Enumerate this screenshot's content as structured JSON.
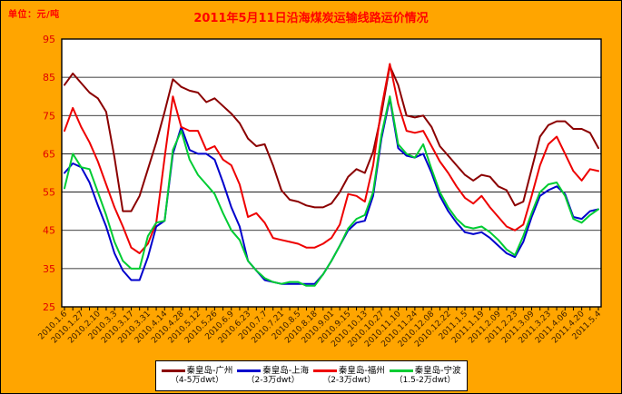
{
  "header": {
    "unit_label": "单位：元/吨",
    "title": "2011年5月11日沿海煤炭运输线路运价情况"
  },
  "colors": {
    "background": "#FFA500",
    "plot_background": "#FFFFFF",
    "plot_border": "#000000",
    "gridline": "#000000",
    "title_color": "#FF0000",
    "y_label_color": "#E00000",
    "x_label_color": "#3B1D00"
  },
  "chart_data": {
    "type": "line",
    "title": "2011年5月11日沿海煤炭运输线路运价情况",
    "ylabel": "元/吨",
    "ylim": [
      25,
      95
    ],
    "y_ticks": [
      95,
      85,
      75,
      65,
      55,
      45,
      35,
      25
    ],
    "grid": true,
    "legend_position": "bottom",
    "points_per_label": 2,
    "x_tick_labels": [
      "2010.1.6",
      "2010.1.27",
      "2010.2.10",
      "2010.3.3",
      "2010.3.17",
      "2010.3.31",
      "2010.4.14",
      "2010.4.28",
      "2010.5.12",
      "2010.5.26",
      "2010.6.9",
      "2010.6.23",
      "2010.7.7",
      "2010.7.21",
      "2010.8.5",
      "2010.8.18",
      "2010.9.01",
      "2010.9.15",
      "2010.10.13",
      "2010.10.27",
      "2010.11.10",
      "2010.11.24",
      "2010.12.08",
      "2010.12.22",
      "2011.1.5",
      "2011.1.19",
      "2011.2.09",
      "2011.2.23",
      "2011.3.09",
      "2011.3.23",
      "2011.4.06",
      "2011.4.20",
      "2011.5.4"
    ],
    "series": [
      {
        "name": "秦皇岛-广州",
        "dwt": "（4-5万dwt）",
        "color": "#8B0000",
        "values": [
          83,
          86,
          83.5,
          81,
          79.5,
          76,
          64,
          50,
          50,
          54,
          61,
          68,
          76,
          84.5,
          82.5,
          81.5,
          81,
          78.5,
          79.5,
          77.5,
          75.5,
          73,
          69,
          67,
          67.5,
          62,
          55.5,
          53,
          52.5,
          51.5,
          51,
          51,
          52,
          55,
          59,
          61,
          60,
          65.5,
          75.5,
          88,
          83,
          75,
          74.5,
          75,
          72,
          67,
          64.5,
          62,
          59.5,
          58,
          59.5,
          59,
          56.5,
          55.5,
          51.5,
          52.5,
          61,
          69.5,
          72.5,
          73.5,
          73.5,
          71.5,
          71.5,
          70.5,
          66.5
        ]
      },
      {
        "name": "秦皇岛-上海",
        "dwt": "（2-3万dwt）",
        "color": "#0000CC",
        "values": [
          60,
          62.5,
          61.5,
          57.5,
          51.5,
          46,
          39,
          34.5,
          32,
          32,
          38,
          46,
          47.5,
          65,
          72,
          66,
          65,
          65,
          63.5,
          57.5,
          51,
          46,
          37,
          34.5,
          32,
          31.5,
          31,
          31,
          31,
          31,
          31,
          33.5,
          37,
          41,
          45,
          47,
          47.5,
          54,
          69,
          79.5,
          66.5,
          64.5,
          64,
          65,
          60,
          54,
          50,
          47,
          44.5,
          44,
          44.5,
          43,
          41,
          39,
          38,
          42,
          48.5,
          54,
          55.5,
          56.5,
          54.5,
          48.5,
          48,
          50,
          50.5
        ]
      },
      {
        "name": "秦皇岛-福州",
        "dwt": "（2-3万dwt）",
        "color": "#EE0000",
        "values": [
          71,
          77,
          72,
          68,
          63,
          57,
          51,
          46,
          40.5,
          39,
          41.5,
          47,
          64,
          80,
          72,
          71,
          71,
          66,
          67,
          63.5,
          62,
          57,
          48.5,
          49.5,
          47,
          43,
          42.5,
          42,
          41.5,
          40.5,
          40.5,
          41.5,
          43,
          46.5,
          54.5,
          54,
          52.5,
          62,
          77,
          88.5,
          78,
          71,
          70.5,
          71,
          67,
          63,
          60,
          56.5,
          53.5,
          52,
          54,
          51,
          48.5,
          46,
          45,
          46.5,
          54,
          62,
          67.5,
          69.5,
          65,
          60.5,
          58,
          61,
          60.5
        ]
      },
      {
        "name": "秦皇岛-宁波",
        "dwt": "（1.5-2万dwt）",
        "color": "#00CC33",
        "values": [
          56,
          65,
          61.5,
          61,
          55,
          49,
          42,
          37,
          35,
          35,
          43.5,
          47,
          47.5,
          66,
          71,
          63.5,
          59.5,
          57,
          54.5,
          49.5,
          45,
          42.5,
          37,
          34.5,
          32.5,
          31.5,
          31,
          31.5,
          31.5,
          30.5,
          30.5,
          33.5,
          37,
          41,
          45.5,
          48,
          49,
          55,
          70,
          80,
          67.5,
          65,
          64,
          67.5,
          61,
          55,
          51,
          48,
          46,
          45.5,
          46,
          44.5,
          42.5,
          40,
          38.5,
          43.5,
          49.5,
          55,
          57,
          57.5,
          54,
          48,
          47,
          49,
          50.5
        ]
      }
    ]
  }
}
